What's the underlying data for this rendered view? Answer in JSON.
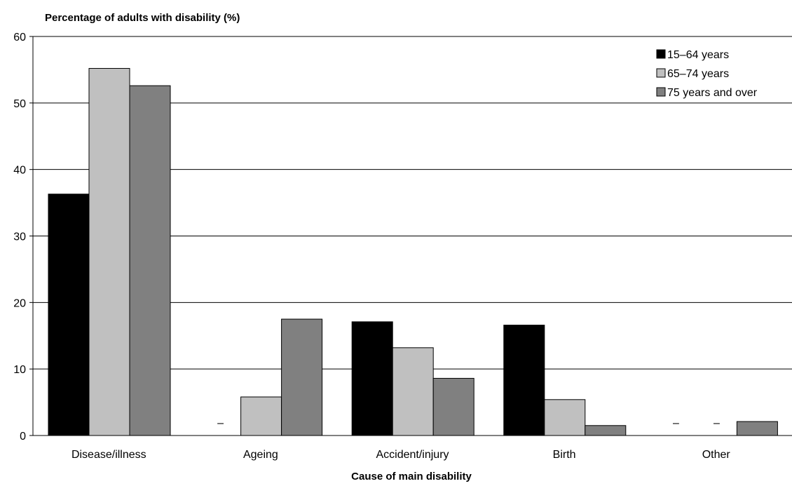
{
  "chart_data": {
    "type": "bar",
    "title": "",
    "ylabel": "Percentage of adults with disability (%)",
    "xlabel": "Cause of main disability",
    "ylim": [
      0,
      60
    ],
    "yticks": [
      0,
      10,
      20,
      30,
      40,
      50,
      60
    ],
    "grid": true,
    "legend_position": "top-right",
    "categories": [
      "Disease/illness",
      "Ageing",
      "Accident/injury",
      "Birth",
      "Other"
    ],
    "series": [
      {
        "name": "15–64 years",
        "color": "#000000",
        "values": [
          36.3,
          null,
          17.1,
          16.6,
          null
        ],
        "markers": [
          "",
          "–",
          "",
          "",
          "–"
        ]
      },
      {
        "name": "65–74 years",
        "color": "#c0c0c0",
        "values": [
          55.2,
          5.8,
          13.2,
          5.4,
          null
        ],
        "markers": [
          "",
          "",
          "",
          "",
          "–"
        ]
      },
      {
        "name": "75 years and over",
        "color": "#808080",
        "values": [
          52.6,
          17.5,
          8.6,
          1.5,
          2.1
        ],
        "markers": [
          "",
          "",
          "",
          "",
          ""
        ]
      }
    ]
  }
}
